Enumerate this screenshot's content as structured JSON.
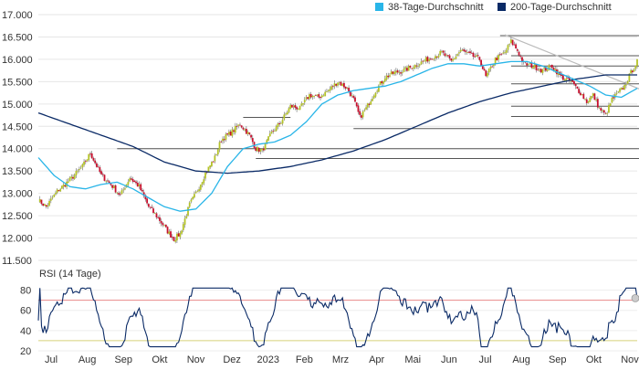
{
  "chart_data": {
    "type": "candlestick",
    "x_labels": [
      "Jul",
      "Aug",
      "Sep",
      "Okt",
      "Nov",
      "Dez",
      "2023",
      "Feb",
      "Mrz",
      "Apr",
      "Mai",
      "Jun",
      "Jul",
      "Aug",
      "Sep",
      "Okt",
      "Nov"
    ],
    "price_panel": {
      "ylim": [
        11500,
        17000
      ],
      "y_ticks": [
        "11.500",
        "12.000",
        "12.500",
        "13.000",
        "13.500",
        "14.000",
        "14.500",
        "15.000",
        "15.500",
        "16.000",
        "16.500",
        "17.000"
      ],
      "y_tick_values": [
        11500,
        12000,
        12500,
        13000,
        13500,
        14000,
        14500,
        15000,
        15500,
        16000,
        16500,
        17000
      ],
      "legend": [
        {
          "label": "38-Tage-Durchschnitt",
          "color": "#29b5e8"
        },
        {
          "label": "200-Tage-Durchschnitt",
          "color": "#0a2a66"
        }
      ],
      "candle_up_color": "#b5c327",
      "candle_down_color": "#c8102e",
      "close_anchors": [
        [
          0,
          12850
        ],
        [
          5,
          12700
        ],
        [
          12,
          13050
        ],
        [
          20,
          13300
        ],
        [
          28,
          13600
        ],
        [
          33,
          13900
        ],
        [
          40,
          13400
        ],
        [
          46,
          13200
        ],
        [
          52,
          12950
        ],
        [
          58,
          13350
        ],
        [
          64,
          13150
        ],
        [
          70,
          12700
        ],
        [
          76,
          12450
        ],
        [
          82,
          12150
        ],
        [
          86,
          11975
        ],
        [
          90,
          12100
        ],
        [
          96,
          12750
        ],
        [
          100,
          13000
        ],
        [
          106,
          13450
        ],
        [
          112,
          13800
        ],
        [
          116,
          14200
        ],
        [
          122,
          14350
        ],
        [
          128,
          14550
        ],
        [
          134,
          14300
        ],
        [
          138,
          14000
        ],
        [
          142,
          13950
        ],
        [
          148,
          14350
        ],
        [
          154,
          14600
        ],
        [
          160,
          14950
        ],
        [
          166,
          14900
        ],
        [
          172,
          15200
        ],
        [
          178,
          15150
        ],
        [
          184,
          15300
        ],
        [
          190,
          15500
        ],
        [
          196,
          15350
        ],
        [
          200,
          15100
        ],
        [
          204,
          14700
        ],
        [
          208,
          14900
        ],
        [
          214,
          15300
        ],
        [
          220,
          15600
        ],
        [
          226,
          15700
        ],
        [
          232,
          15750
        ],
        [
          238,
          15850
        ],
        [
          244,
          15950
        ],
        [
          250,
          16050
        ],
        [
          256,
          16150
        ],
        [
          262,
          15950
        ],
        [
          268,
          16200
        ],
        [
          274,
          16100
        ],
        [
          280,
          16000
        ],
        [
          284,
          15600
        ],
        [
          290,
          16000
        ],
        [
          296,
          16150
        ],
        [
          300,
          16400
        ],
        [
          304,
          16200
        ],
        [
          308,
          15900
        ],
        [
          314,
          15850
        ],
        [
          320,
          15750
        ],
        [
          326,
          15850
        ],
        [
          332,
          15600
        ],
        [
          338,
          15500
        ],
        [
          344,
          15250
        ],
        [
          348,
          15050
        ],
        [
          352,
          15200
        ],
        [
          356,
          14900
        ],
        [
          360,
          14750
        ],
        [
          364,
          15100
        ],
        [
          368,
          15250
        ],
        [
          372,
          15400
        ],
        [
          376,
          15700
        ],
        [
          380,
          15950
        ]
      ],
      "ma38_anchors": [
        [
          0,
          13800
        ],
        [
          10,
          13400
        ],
        [
          20,
          13150
        ],
        [
          30,
          13100
        ],
        [
          40,
          13200
        ],
        [
          50,
          13250
        ],
        [
          60,
          13100
        ],
        [
          70,
          12900
        ],
        [
          80,
          12700
        ],
        [
          90,
          12600
        ],
        [
          100,
          12650
        ],
        [
          110,
          13000
        ],
        [
          120,
          13600
        ],
        [
          130,
          14000
        ],
        [
          140,
          14100
        ],
        [
          150,
          14150
        ],
        [
          160,
          14300
        ],
        [
          170,
          14600
        ],
        [
          180,
          15000
        ],
        [
          190,
          15200
        ],
        [
          200,
          15300
        ],
        [
          210,
          15350
        ],
        [
          220,
          15400
        ],
        [
          230,
          15500
        ],
        [
          240,
          15650
        ],
        [
          250,
          15800
        ],
        [
          260,
          15900
        ],
        [
          270,
          15900
        ],
        [
          280,
          15850
        ],
        [
          290,
          15900
        ],
        [
          300,
          15950
        ],
        [
          310,
          15950
        ],
        [
          320,
          15850
        ],
        [
          330,
          15700
        ],
        [
          340,
          15550
        ],
        [
          350,
          15400
        ],
        [
          360,
          15200
        ],
        [
          370,
          15150
        ],
        [
          380,
          15350
        ]
      ],
      "ma200_anchors": [
        [
          0,
          14800
        ],
        [
          20,
          14550
        ],
        [
          40,
          14300
        ],
        [
          60,
          14050
        ],
        [
          80,
          13700
        ],
        [
          100,
          13500
        ],
        [
          120,
          13450
        ],
        [
          140,
          13500
        ],
        [
          160,
          13600
        ],
        [
          180,
          13750
        ],
        [
          200,
          13950
        ],
        [
          220,
          14200
        ],
        [
          240,
          14500
        ],
        [
          260,
          14800
        ],
        [
          280,
          15050
        ],
        [
          300,
          15250
        ],
        [
          320,
          15400
        ],
        [
          340,
          15550
        ],
        [
          360,
          15650
        ],
        [
          380,
          15650
        ]
      ],
      "support_resistance": [
        {
          "y": 16530,
          "from": 293,
          "to": 384
        },
        {
          "y": 16080,
          "from": 300,
          "to": 384
        },
        {
          "y": 15850,
          "from": 300,
          "to": 384
        },
        {
          "y": 15450,
          "from": 300,
          "to": 384
        },
        {
          "y": 14950,
          "from": 300,
          "to": 384
        },
        {
          "y": 14720,
          "from": 300,
          "to": 384
        },
        {
          "y": 14450,
          "from": 200,
          "to": 384
        },
        {
          "y": 14700,
          "from": 130,
          "to": 160
        },
        {
          "y": 14000,
          "from": 50,
          "to": 384
        },
        {
          "y": 13780,
          "from": 138,
          "to": 384
        }
      ],
      "trend_line": {
        "x0": 296,
        "y0": 16550,
        "x1": 384,
        "y1": 15300
      }
    },
    "rsi_panel": {
      "title": "RSI (14 Tage)",
      "ylim": [
        20,
        85
      ],
      "y_ticks": [
        "20",
        "40",
        "60",
        "80"
      ],
      "y_tick_values": [
        20,
        40,
        60,
        80
      ],
      "overbought": 70,
      "oversold": 30,
      "overbought_color": "#e88a8a",
      "oversold_color": "#d6d27a",
      "line_color": "#0a2a66",
      "last_value": 72
    }
  }
}
